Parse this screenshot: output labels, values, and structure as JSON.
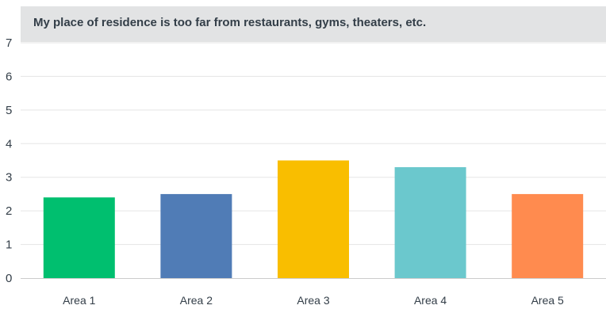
{
  "chart_data": {
    "type": "bar",
    "title": "My place of residence is too far from restaurants, gyms, theaters, etc.",
    "categories": [
      "Area 1",
      "Area 2",
      "Area 3",
      "Area 4",
      "Area 5"
    ],
    "values": [
      2.4,
      2.5,
      3.5,
      3.3,
      2.5
    ],
    "colors": [
      "#00bf6f",
      "#507cb6",
      "#f9be00",
      "#6bc8cd",
      "#ff8b4f"
    ],
    "ylim": [
      0,
      7
    ],
    "yticks": [
      "0",
      "1",
      "2",
      "3",
      "4",
      "5",
      "6",
      "7"
    ],
    "grid": true,
    "grid_color": "#e5e5e5",
    "axis_color": "#cccccc",
    "title_bg": "#e2e3e4",
    "text_color": "#333e48"
  }
}
